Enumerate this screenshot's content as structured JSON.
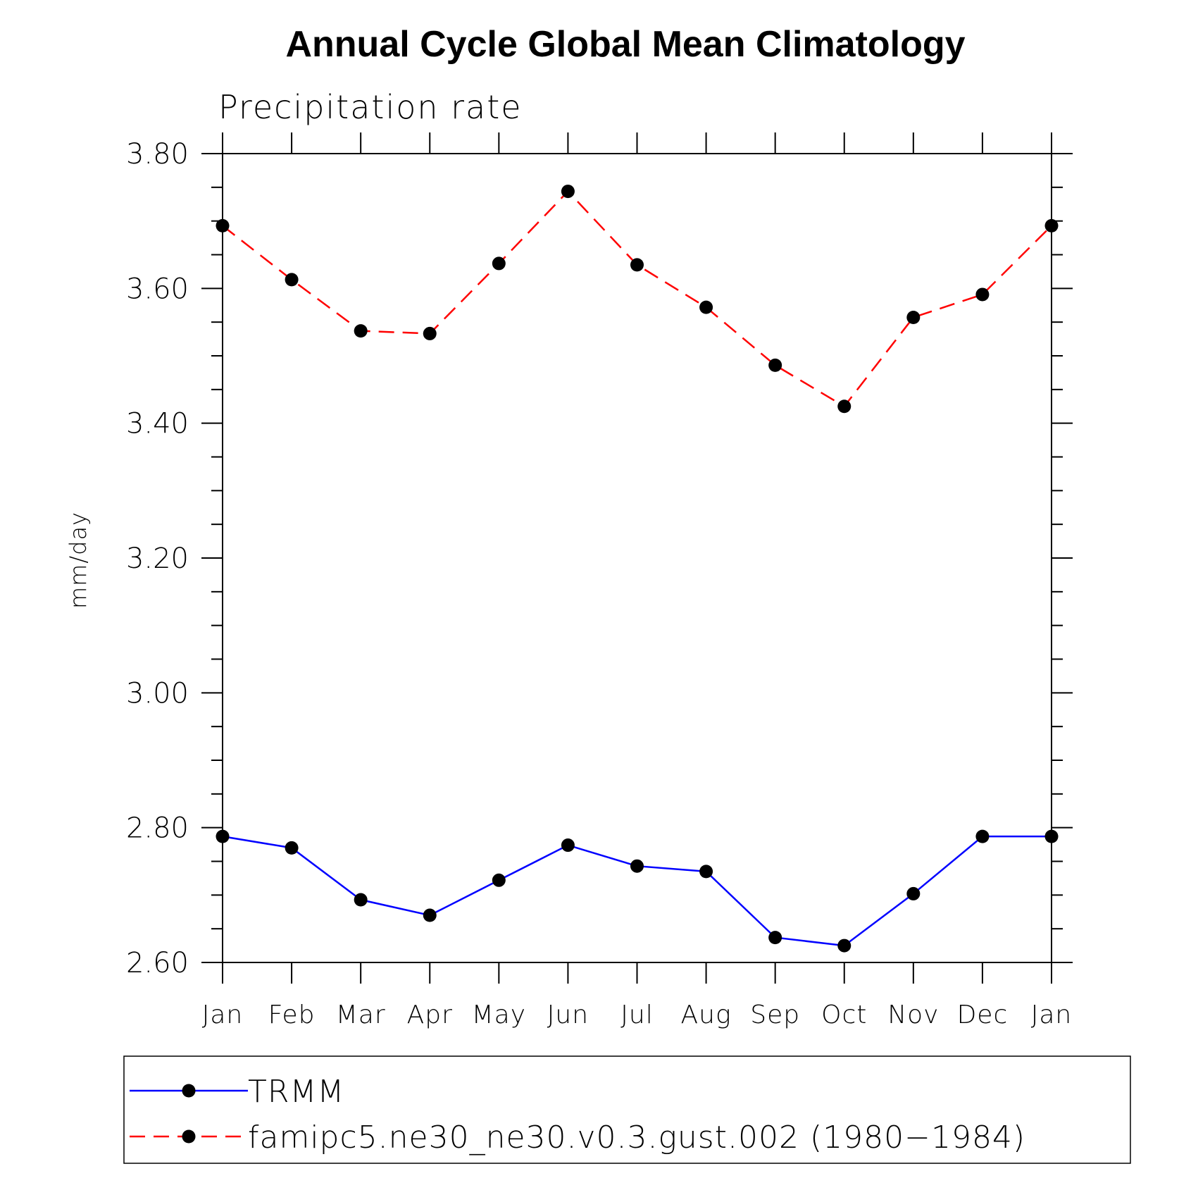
{
  "chart_data": {
    "type": "line",
    "title": "Annual Cycle Global Mean Climatology",
    "subtitle": "Precipitation rate",
    "xlabel": "",
    "ylabel": "mm/day",
    "categories": [
      "Jan",
      "Feb",
      "Mar",
      "Apr",
      "May",
      "Jun",
      "Jul",
      "Aug",
      "Sep",
      "Oct",
      "Nov",
      "Dec",
      "Jan"
    ],
    "ylim": [
      2.6,
      3.8
    ],
    "yticks": [
      "2.60",
      "2.80",
      "3.00",
      "3.20",
      "3.40",
      "3.60",
      "3.80"
    ],
    "grid": false,
    "legend_position": "bottom",
    "series": [
      {
        "name": "TRMM",
        "color": "#0000ff",
        "line_style": "solid",
        "marker": "circle",
        "values": [
          2.787,
          2.77,
          2.693,
          2.67,
          2.722,
          2.774,
          2.743,
          2.735,
          2.637,
          2.625,
          2.702,
          2.787,
          2.787
        ]
      },
      {
        "name": "famipc5.ne30_ne30.v0.3.gust.002 (1980−1984)",
        "color": "#ff0000",
        "line_style": "dashed",
        "marker": "circle",
        "values": [
          3.693,
          3.613,
          3.537,
          3.533,
          3.637,
          3.744,
          3.635,
          3.572,
          3.486,
          3.425,
          3.557,
          3.591,
          3.693
        ]
      }
    ]
  }
}
